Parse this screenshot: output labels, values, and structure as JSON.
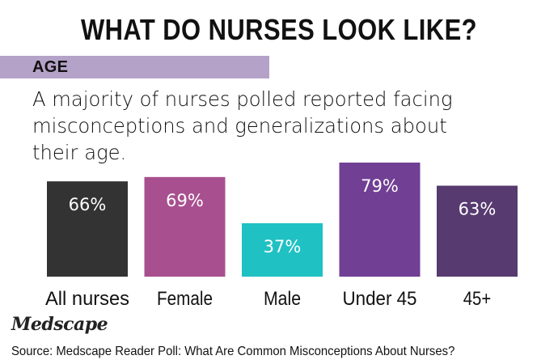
{
  "title": "WHAT DO NURSES LOOK LIKE?",
  "section": {
    "label": "AGE",
    "bar_color": "#b5a2c8"
  },
  "subtitle": "A majority of nurses polled reported facing misconceptions and generalizations about their age.",
  "chart_data": {
    "type": "bar",
    "categories": [
      "All nurses",
      "Female",
      "Male",
      "Under 45",
      "45+"
    ],
    "values": [
      66,
      69,
      37,
      79,
      63
    ],
    "value_labels": [
      "66%",
      "69%",
      "37%",
      "79%",
      "63%"
    ],
    "colors": [
      "#333333",
      "#a8508f",
      "#1fc1c3",
      "#713f94",
      "#573a70"
    ],
    "title": "",
    "xlabel": "",
    "ylabel": "",
    "ylim": [
      0,
      100
    ],
    "grid": false
  },
  "brand": "Medscape",
  "source": "Source: Medscape Reader Poll: What Are Common Misconceptions About Nurses?"
}
